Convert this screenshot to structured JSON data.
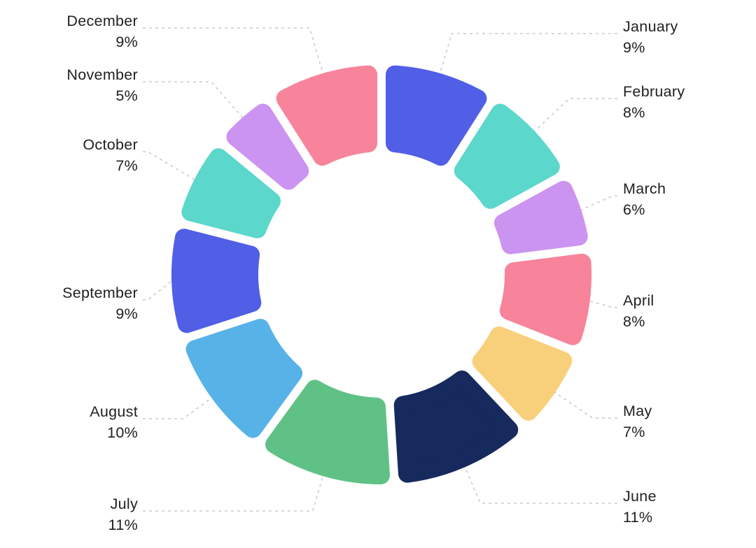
{
  "chart_data": {
    "type": "pie",
    "subtype": "donut",
    "title": "",
    "unit": "%",
    "legend": "none",
    "start_angle_deg": 0,
    "direction": "clockwise",
    "categories": [
      "January",
      "February",
      "March",
      "April",
      "May",
      "June",
      "July",
      "August",
      "September",
      "October",
      "November",
      "December"
    ],
    "values": [
      9,
      8,
      6,
      8,
      7,
      11,
      11,
      10,
      9,
      7,
      5,
      9
    ],
    "slices": [
      {
        "label": "January",
        "value": 9,
        "pct_label": "9%",
        "color": "#515ee6"
      },
      {
        "label": "February",
        "value": 8,
        "pct_label": "8%",
        "color": "#5bd7cc"
      },
      {
        "label": "March",
        "value": 6,
        "pct_label": "6%",
        "color": "#cb94f0"
      },
      {
        "label": "April",
        "value": 8,
        "pct_label": "8%",
        "color": "#f7849a"
      },
      {
        "label": "May",
        "value": 7,
        "pct_label": "7%",
        "color": "#f8d07c"
      },
      {
        "label": "June",
        "value": 11,
        "pct_label": "11%",
        "color": "#172a5e"
      },
      {
        "label": "July",
        "value": 11,
        "pct_label": "11%",
        "color": "#60c186"
      },
      {
        "label": "August",
        "value": 10,
        "pct_label": "10%",
        "color": "#57b2e8"
      },
      {
        "label": "September",
        "value": 9,
        "pct_label": "9%",
        "color": "#515ee6"
      },
      {
        "label": "October",
        "value": 7,
        "pct_label": "7%",
        "color": "#5bd7cc"
      },
      {
        "label": "November",
        "value": 5,
        "pct_label": "5%",
        "color": "#cb94f0"
      },
      {
        "label": "December",
        "value": 9,
        "pct_label": "9%",
        "color": "#f7849a"
      }
    ],
    "colors": {
      "leader_line": "#cbcbcb",
      "label_text": "#212121",
      "background": "#ffffff"
    }
  }
}
